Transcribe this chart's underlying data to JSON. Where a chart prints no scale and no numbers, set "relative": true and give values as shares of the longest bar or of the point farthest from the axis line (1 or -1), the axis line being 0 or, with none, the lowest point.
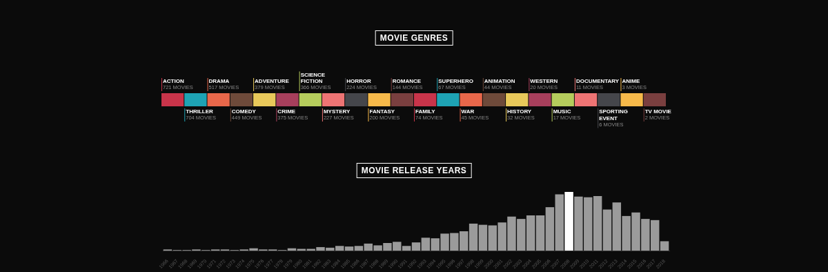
{
  "chart_data": [
    {
      "type": "other",
      "title": "MOVIE GENRES",
      "categories": [
        "ACTION",
        "THRILLER",
        "DRAMA",
        "COMEDY",
        "ADVENTURE",
        "CRIME",
        "SCIENCE FICTION",
        "MYSTERY",
        "HORROR",
        "FANTASY",
        "ROMANCE",
        "FAMILY",
        "SUPERHERO",
        "WAR",
        "ANIMATION",
        "HISTORY",
        "WESTERN",
        "MUSIC",
        "DOCUMENTARY",
        "SPORTING EVENT",
        "ANIME",
        "TV MOVIE"
      ],
      "values": [
        721,
        704,
        517,
        449,
        379,
        375,
        366,
        227,
        224,
        200,
        144,
        74,
        67,
        45,
        44,
        32,
        20,
        17,
        11,
        6,
        3,
        2
      ],
      "value_labels": [
        "721 MOVIES",
        "704 MOVIES",
        "517 MOVIES",
        "449 MOVIES",
        "379 MOVIES",
        "375 MOVIES",
        "366 MOVIES",
        "227 MOVIES",
        "224 MOVIES",
        "200 MOVIES",
        "144 MOVIES",
        "74 MOVIES",
        "67 MOVIES",
        "45 MOVIES",
        "44 MOVIES",
        "32 MOVIES",
        "20 MOVIES",
        "17 MOVIES",
        "11 MOVIES",
        "6 MOVIES",
        "3 MOVIES",
        "2 MOVIES"
      ],
      "colors": [
        "#c9344a",
        "#1ea3b4",
        "#e8674a",
        "#6e4a3a",
        "#e8c85a",
        "#a73f5c",
        "#b5cc5c",
        "#ee7474",
        "#45464b",
        "#f6b94a",
        "#7a3f3f",
        "#c9344a",
        "#1ea3b4",
        "#e8674a",
        "#6e4a3a",
        "#e8c85a",
        "#a73f5c",
        "#b5cc5c",
        "#ee7474",
        "#45464b",
        "#f6b94a",
        "#7a3f3f"
      ]
    },
    {
      "type": "bar",
      "title": "MOVIE RELEASE YEARS",
      "relative": true,
      "categories": [
        "1966",
        "1967",
        "1968",
        "1969",
        "1970",
        "1971",
        "1972",
        "1973",
        "1974",
        "1975",
        "1976",
        "1977",
        "1978",
        "1979",
        "1980",
        "1981",
        "1982",
        "1983",
        "1984",
        "1985",
        "1986",
        "1987",
        "1988",
        "1989",
        "1990",
        "1991",
        "1992",
        "1993",
        "1994",
        "1995",
        "1996",
        "1997",
        "1998",
        "1999",
        "2000",
        "2001",
        "2002",
        "2003",
        "2004",
        "2005",
        "2006",
        "2007",
        "2008",
        "2009",
        "2010",
        "2011",
        "2012",
        "2013",
        "2014",
        "2015",
        "2016",
        "2017",
        "2018"
      ],
      "values": [
        0.02,
        0.01,
        0.01,
        0.02,
        0.01,
        0.02,
        0.02,
        0.01,
        0.02,
        0.04,
        0.02,
        0.02,
        0.01,
        0.04,
        0.03,
        0.03,
        0.06,
        0.05,
        0.08,
        0.07,
        0.08,
        0.12,
        0.09,
        0.13,
        0.15,
        0.08,
        0.14,
        0.22,
        0.21,
        0.29,
        0.3,
        0.33,
        0.46,
        0.44,
        0.43,
        0.48,
        0.58,
        0.54,
        0.6,
        0.6,
        0.74,
        0.96,
        1,
        0.92,
        0.91,
        0.93,
        0.7,
        0.82,
        0.59,
        0.65,
        0.54,
        0.52,
        0.16
      ],
      "colors": [
        "#9b9b9b",
        "#9b9b9b",
        "#9b9b9b",
        "#9b9b9b",
        "#9b9b9b",
        "#9b9b9b",
        "#9b9b9b",
        "#9b9b9b",
        "#9b9b9b",
        "#9b9b9b",
        "#9b9b9b",
        "#9b9b9b",
        "#9b9b9b",
        "#9b9b9b",
        "#9b9b9b",
        "#9b9b9b",
        "#9b9b9b",
        "#9b9b9b",
        "#9b9b9b",
        "#9b9b9b",
        "#9b9b9b",
        "#9b9b9b",
        "#9b9b9b",
        "#9b9b9b",
        "#9b9b9b",
        "#9b9b9b",
        "#9b9b9b",
        "#9b9b9b",
        "#9b9b9b",
        "#9b9b9b",
        "#9b9b9b",
        "#9b9b9b",
        "#9b9b9b",
        "#9b9b9b",
        "#9b9b9b",
        "#9b9b9b",
        "#9b9b9b",
        "#9b9b9b",
        "#9b9b9b",
        "#9b9b9b",
        "#9b9b9b",
        "#9b9b9b",
        "#ffffff",
        "#9b9b9b",
        "#9b9b9b",
        "#9b9b9b",
        "#9b9b9b",
        "#9b9b9b",
        "#9b9b9b",
        "#9b9b9b",
        "#9b9b9b",
        "#9b9b9b",
        "#9b9b9b"
      ]
    }
  ]
}
